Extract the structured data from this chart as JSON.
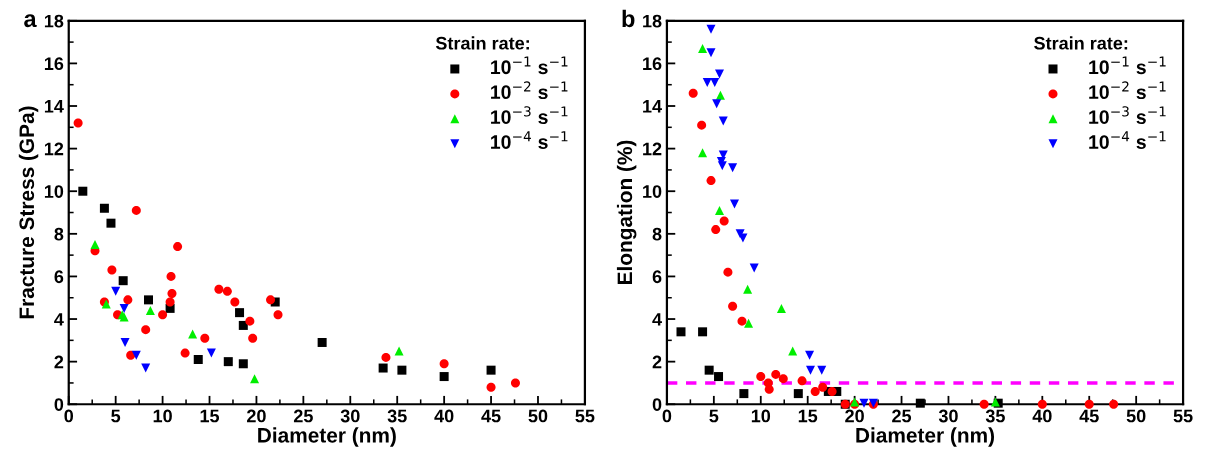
{
  "chart_data": [
    {
      "type": "scatter",
      "title": "a",
      "xlabel": "Diameter (nm)",
      "ylabel": "Fracture Stress (GPa)",
      "legend_title": "Strain rate:",
      "legend": "top right",
      "grid": false,
      "xlim": [
        0,
        55
      ],
      "xticks": [
        0,
        5,
        10,
        15,
        20,
        25,
        30,
        35,
        40,
        45,
        50,
        55
      ],
      "ylim": [
        0,
        18
      ],
      "yticks": [
        0,
        2,
        4,
        6,
        8,
        10,
        12,
        14,
        16,
        18
      ],
      "series": [
        {
          "name": "10$^{−1}$ s$^{−1}$",
          "color": "#000000",
          "marker": "square",
          "x": [
            1.5,
            3.8,
            4.5,
            5.8,
            8.5,
            10.8,
            13.8,
            17,
            18.2,
            18.6,
            18.6,
            22,
            27,
            33.5,
            35.5,
            40,
            45
          ],
          "values": [
            10.0,
            9.2,
            8.5,
            5.8,
            4.9,
            4.5,
            2.1,
            2.0,
            4.3,
            3.7,
            1.9,
            4.8,
            2.9,
            1.7,
            1.6,
            1.3,
            1.6
          ]
        },
        {
          "name": "10$^{−2}$ s$^{−1}$",
          "color": "#ff0000",
          "marker": "circle",
          "x": [
            1,
            2.8,
            3.8,
            4.6,
            5.2,
            6.3,
            6.6,
            7.2,
            8.2,
            10,
            10.8,
            10.9,
            11,
            11.6,
            12.4,
            14.5,
            16,
            16.9,
            17.7,
            19.3,
            19.6,
            21.5,
            22.3,
            33.8,
            40,
            45,
            47.6
          ],
          "values": [
            13.2,
            7.2,
            4.8,
            6.3,
            4.2,
            4.9,
            2.3,
            9.1,
            3.5,
            4.2,
            4.8,
            6.0,
            5.2,
            7.4,
            2.4,
            3.1,
            5.4,
            5.3,
            4.8,
            3.9,
            3.1,
            4.9,
            4.2,
            2.2,
            1.9,
            0.8,
            1.0
          ]
        },
        {
          "name": "10$^{−3}$ s$^{−1}$",
          "color": "#00ee00",
          "marker": "triangle",
          "x": [
            2.8,
            4.0,
            5.7,
            5.9,
            8.7,
            13.2,
            19.8,
            35.2
          ],
          "values": [
            7.5,
            4.7,
            4.2,
            4.1,
            4.4,
            3.3,
            1.2,
            2.5
          ]
        },
        {
          "name": "10$^{−4}$ s$^{−1}$",
          "color": "#0000ff",
          "marker": "triangle_down",
          "x": [
            5.0,
            5.9,
            6.0,
            7.2,
            8.2,
            15.2
          ],
          "values": [
            5.3,
            4.5,
            2.9,
            2.3,
            1.7,
            2.4
          ]
        }
      ]
    },
    {
      "type": "scatter",
      "title": "b",
      "xlabel": "Diameter (nm)",
      "ylabel": "Elongation (%)",
      "legend_title": "Strain rate:",
      "legend": "top right",
      "grid": false,
      "xlim": [
        0,
        55
      ],
      "xticks": [
        0,
        5,
        10,
        15,
        20,
        25,
        30,
        35,
        40,
        45,
        50,
        55
      ],
      "ylim": [
        0,
        18
      ],
      "yticks": [
        0,
        2,
        4,
        6,
        8,
        10,
        12,
        14,
        16,
        18
      ],
      "ref_lines": [
        {
          "axis": "y",
          "value": 1,
          "color": "#ff00ff",
          "line_style": "dashed"
        }
      ],
      "series": [
        {
          "name": "10$^{−1}$ s$^{−1}$",
          "color": "#000000",
          "marker": "square",
          "x": [
            1.5,
            3.8,
            4.5,
            5.5,
            8.2,
            14,
            17.2,
            18.1,
            19,
            27,
            33.5,
            35.3
          ],
          "values": [
            3.4,
            3.4,
            1.6,
            1.3,
            0.5,
            0.5,
            0.6,
            0.6,
            0,
            0.05,
            null,
            0.05
          ]
        },
        {
          "name": "10$^{−2}$ s$^{−1}$",
          "color": "#ff0000",
          "marker": "circle",
          "x": [
            2.8,
            3.7,
            4.7,
            5.2,
            6.1,
            6.5,
            7,
            8,
            10,
            10.8,
            10.9,
            11.6,
            12.4,
            14.4,
            15.8,
            16.6,
            17.6,
            19,
            20,
            22,
            33.8,
            40,
            45,
            47.6
          ],
          "values": [
            14.6,
            13.1,
            10.5,
            8.2,
            8.6,
            6.2,
            4.6,
            3.9,
            1.3,
            1.0,
            0.7,
            1.4,
            1.2,
            1.1,
            0.6,
            0.8,
            0.6,
            0,
            0,
            0,
            0,
            0,
            0,
            0
          ]
        },
        {
          "name": "10$^{−3}$ s$^{−1}$",
          "color": "#00ee00",
          "marker": "triangle",
          "x": [
            3.8,
            5.7,
            3.8,
            5.6,
            8.6,
            8.7,
            12.2,
            13.4,
            20,
            35
          ],
          "values": [
            16.7,
            14.5,
            11.8,
            9.1,
            5.4,
            3.8,
            4.5,
            2.5,
            0.1,
            0.1
          ]
        },
        {
          "name": "10$^{−4}$ s$^{−1}$",
          "color": "#0000ff",
          "marker": "triangle_down",
          "x": [
            4.7,
            4.7,
            4.3,
            5.1,
            5.6,
            5.3,
            6.0,
            6.0,
            5.8,
            5.9,
            7.0,
            7.2,
            7.8,
            8.1,
            9.3,
            15.2,
            15.3,
            16.5,
            21,
            22
          ],
          "values": [
            17.6,
            16.5,
            15.1,
            15.1,
            15.5,
            14.1,
            13.3,
            11.7,
            11.4,
            11.2,
            11.1,
            9.4,
            8.0,
            7.8,
            6.4,
            2.3,
            1.6,
            1.6,
            0.05,
            0.05
          ]
        }
      ]
    }
  ]
}
